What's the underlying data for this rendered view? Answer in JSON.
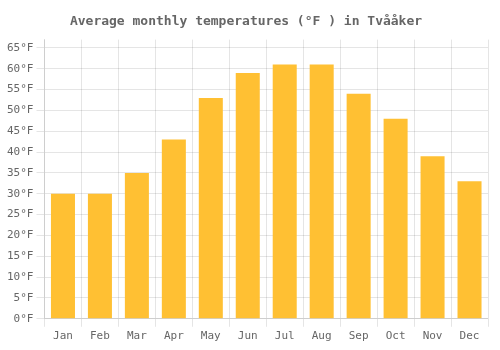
{
  "chart_data": {
    "type": "bar",
    "title": "Average monthly temperatures (°F ) in Tvååker",
    "categories": [
      "Jan",
      "Feb",
      "Mar",
      "Apr",
      "May",
      "Jun",
      "Jul",
      "Aug",
      "Sep",
      "Oct",
      "Nov",
      "Dec"
    ],
    "values": [
      30,
      30,
      35,
      43,
      53,
      59,
      61,
      61,
      54,
      48,
      39,
      33
    ],
    "color": "#FFC033",
    "ylim": [
      0,
      67
    ],
    "yticks": [
      {
        "value": 0,
        "label": "0°F"
      },
      {
        "value": 5,
        "label": "5°F"
      },
      {
        "value": 10,
        "label": "10°F"
      },
      {
        "value": 15,
        "label": "15°F"
      },
      {
        "value": 20,
        "label": "20°F"
      },
      {
        "value": 25,
        "label": "25°F"
      },
      {
        "value": 30,
        "label": "30°F"
      },
      {
        "value": 35,
        "label": "35°F"
      },
      {
        "value": 40,
        "label": "40°F"
      },
      {
        "value": 45,
        "label": "45°F"
      },
      {
        "value": 50,
        "label": "50°F"
      },
      {
        "value": 55,
        "label": "55°F"
      },
      {
        "value": 60,
        "label": "60°F"
      },
      {
        "value": 65,
        "label": "65°F"
      }
    ],
    "grid": true
  }
}
